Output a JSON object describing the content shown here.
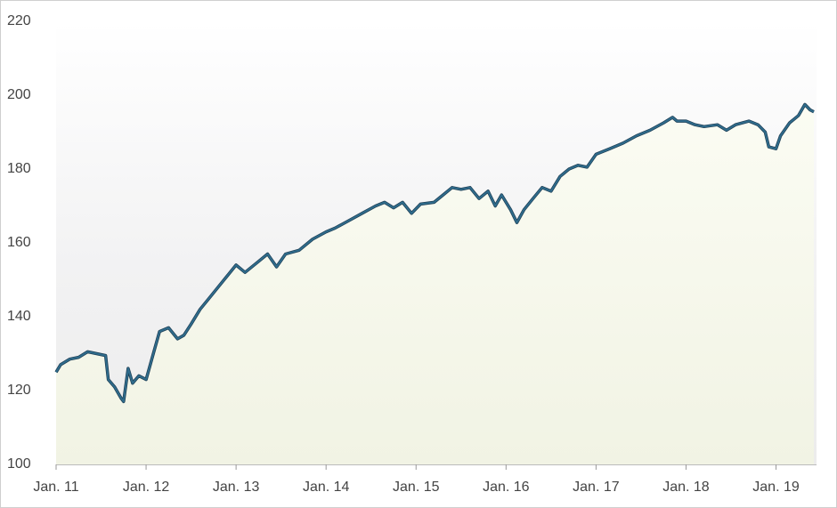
{
  "chart_data": {
    "type": "area",
    "color": "#2f6c8c",
    "x": [
      2011.0,
      2011.05,
      2011.15,
      2011.25,
      2011.35,
      2011.45,
      2011.55,
      2011.58,
      2011.65,
      2011.72,
      2011.75,
      2011.8,
      2011.85,
      2011.92,
      2012.0,
      2012.08,
      2012.15,
      2012.25,
      2012.35,
      2012.42,
      2012.5,
      2012.6,
      2012.7,
      2012.8,
      2012.9,
      2013.0,
      2013.1,
      2013.25,
      2013.35,
      2013.45,
      2013.55,
      2013.7,
      2013.85,
      2014.0,
      2014.1,
      2014.25,
      2014.4,
      2014.55,
      2014.65,
      2014.75,
      2014.85,
      2014.95,
      2015.05,
      2015.2,
      2015.3,
      2015.4,
      2015.5,
      2015.6,
      2015.7,
      2015.8,
      2015.88,
      2015.95,
      2016.05,
      2016.12,
      2016.2,
      2016.3,
      2016.4,
      2016.5,
      2016.6,
      2016.7,
      2016.8,
      2016.9,
      2017.0,
      2017.15,
      2017.3,
      2017.45,
      2017.6,
      2017.75,
      2017.85,
      2017.9,
      2018.0,
      2018.1,
      2018.2,
      2018.35,
      2018.45,
      2018.55,
      2018.7,
      2018.8,
      2018.88,
      2018.92,
      2019.0,
      2019.05,
      2019.15,
      2019.25,
      2019.32,
      2019.38,
      2019.42
    ],
    "values": [
      125,
      127,
      128.5,
      129,
      130.5,
      130,
      129.5,
      123,
      121,
      118,
      117,
      126,
      122,
      124,
      123,
      130,
      136,
      137,
      134,
      135,
      138,
      142,
      145,
      148,
      151,
      154,
      152,
      155,
      157,
      153.5,
      157,
      158,
      161,
      163,
      164,
      166,
      168,
      170,
      171,
      169.5,
      171,
      168,
      170.5,
      171,
      173,
      175,
      174.5,
      175,
      172,
      174,
      170,
      173,
      169,
      165.5,
      169,
      172,
      175,
      174,
      178,
      180,
      181,
      180.5,
      184,
      185.5,
      187,
      189,
      190.5,
      192.5,
      194,
      193,
      193,
      192,
      191.5,
      192,
      190.5,
      192,
      193,
      192,
      190,
      186,
      185.5,
      189,
      192.5,
      194.5,
      197.5,
      196,
      195.5
    ],
    "xlim": [
      2011,
      2019.45
    ],
    "xticks": [
      {
        "value": 2011,
        "label": "Jan. 11"
      },
      {
        "value": 2012,
        "label": "Jan. 12"
      },
      {
        "value": 2013,
        "label": "Jan. 13"
      },
      {
        "value": 2014,
        "label": "Jan. 14"
      },
      {
        "value": 2015,
        "label": "Jan. 15"
      },
      {
        "value": 2016,
        "label": "Jan. 16"
      },
      {
        "value": 2017,
        "label": "Jan. 17"
      },
      {
        "value": 2018,
        "label": "Jan. 18"
      },
      {
        "value": 2019,
        "label": "Jan. 19"
      }
    ],
    "ylim": [
      100,
      220
    ],
    "yticks": [
      100,
      120,
      140,
      160,
      180,
      200,
      220
    ],
    "grid": false
  }
}
